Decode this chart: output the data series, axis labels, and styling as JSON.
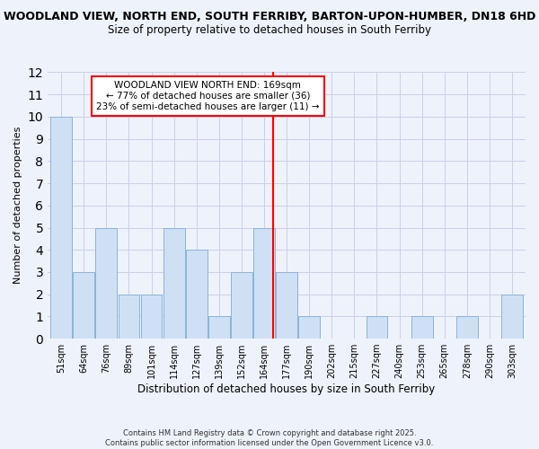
{
  "title_line1": "WOODLAND VIEW, NORTH END, SOUTH FERRIBY, BARTON-UPON-HUMBER, DN18 6HD",
  "title_line2": "Size of property relative to detached houses in South Ferriby",
  "xlabel": "Distribution of detached houses by size in South Ferriby",
  "ylabel": "Number of detached properties",
  "categories": [
    "51sqm",
    "64sqm",
    "76sqm",
    "89sqm",
    "101sqm",
    "114sqm",
    "127sqm",
    "139sqm",
    "152sqm",
    "164sqm",
    "177sqm",
    "190sqm",
    "202sqm",
    "215sqm",
    "227sqm",
    "240sqm",
    "253sqm",
    "265sqm",
    "278sqm",
    "290sqm",
    "303sqm"
  ],
  "values": [
    10,
    3,
    5,
    2,
    2,
    5,
    4,
    1,
    3,
    5,
    3,
    1,
    0,
    0,
    1,
    0,
    1,
    0,
    1,
    0,
    2
  ],
  "bar_color": "#cfe0f5",
  "bar_edge_color": "#8ab4d8",
  "ylim": [
    0,
    12
  ],
  "yticks": [
    0,
    1,
    2,
    3,
    4,
    5,
    6,
    7,
    8,
    9,
    10,
    11,
    12
  ],
  "ref_line_color": "red",
  "annotation_text": "WOODLAND VIEW NORTH END: 169sqm\n← 77% of detached houses are smaller (36)\n23% of semi-detached houses are larger (11) →",
  "annotation_box_color": "white",
  "annotation_box_edge": "red",
  "footer_line1": "Contains HM Land Registry data © Crown copyright and database right 2025.",
  "footer_line2": "Contains public sector information licensed under the Open Government Licence v3.0.",
  "background_color": "#eef2fb",
  "grid_color": "#c8d0e8",
  "title1_fontsize": 9.0,
  "title2_fontsize": 8.5,
  "ylabel_fontsize": 8.0,
  "xlabel_fontsize": 8.5,
  "tick_fontsize": 7.0,
  "annotation_fontsize": 7.5,
  "footer_fontsize": 6.0
}
